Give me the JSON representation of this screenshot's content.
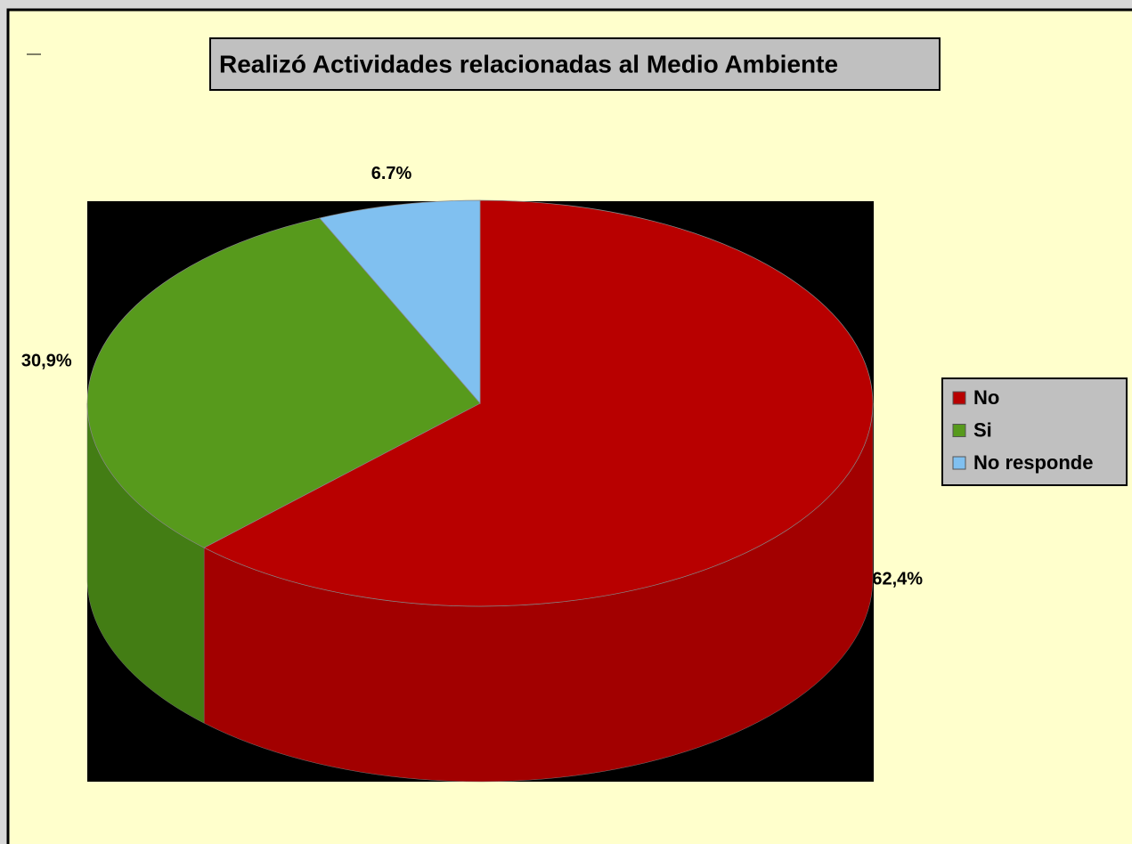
{
  "chart_data": {
    "type": "pie3d",
    "title": "Realizó Actividades relacionadas al Medio Ambiente",
    "categories": [
      "No",
      "Si",
      "No responde"
    ],
    "values": [
      62.4,
      30.9,
      6.7
    ],
    "value_labels": [
      "62,4%",
      "30,9%",
      "6.7%"
    ],
    "colors": [
      "#b80000",
      "#579a1c",
      "#80c0f0"
    ],
    "side_colors": [
      "#a20000",
      "#437d14",
      "#5f9fd0"
    ],
    "legend": "right"
  }
}
